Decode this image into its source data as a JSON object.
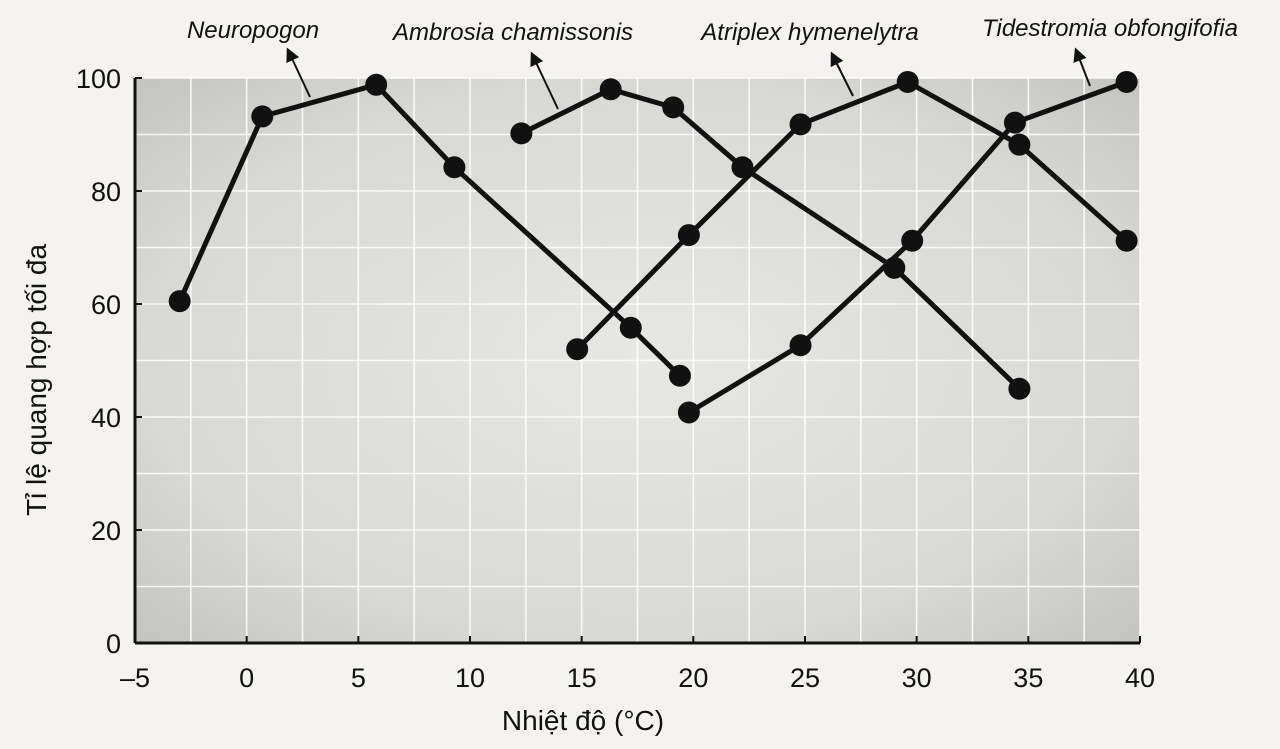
{
  "chart_data": {
    "type": "line",
    "title": "",
    "xlabel": "Nhiệt độ (°C)",
    "ylabel": "Tỉ lệ quang hợp tối đa",
    "xlim": [
      -5,
      40
    ],
    "ylim": [
      0,
      100
    ],
    "x_ticks": [
      "–5",
      "0",
      "5",
      "10",
      "15",
      "20",
      "25",
      "30",
      "35",
      "40"
    ],
    "y_ticks": [
      "0",
      "20",
      "40",
      "60",
      "80",
      "100"
    ],
    "grid": true,
    "series": [
      {
        "name": "Neuropogon",
        "x": [
          -3,
          0.7,
          5.8,
          9.3,
          17.2,
          19.4
        ],
        "y": [
          60.5,
          93.2,
          98.8,
          84.2,
          55.8,
          47.3
        ]
      },
      {
        "name": "Ambrosia chamissonis",
        "x": [
          12.3,
          16.3,
          19.1,
          22.2,
          29,
          34.6
        ],
        "y": [
          90.2,
          98,
          94.8,
          84.2,
          66.4,
          45
        ]
      },
      {
        "name": "Atriplex hymenelytra",
        "x": [
          14.8,
          19.8,
          24.8,
          29.6,
          34.6,
          39.4
        ],
        "y": [
          52,
          72.2,
          91.8,
          99.3,
          88.2,
          71.2
        ]
      },
      {
        "name": "Tidestromia obfongifofia",
        "x": [
          19.8,
          24.8,
          29.8,
          34.4,
          39.4
        ],
        "y": [
          40.8,
          52.7,
          71.2,
          92.1,
          99.3
        ]
      }
    ]
  }
}
